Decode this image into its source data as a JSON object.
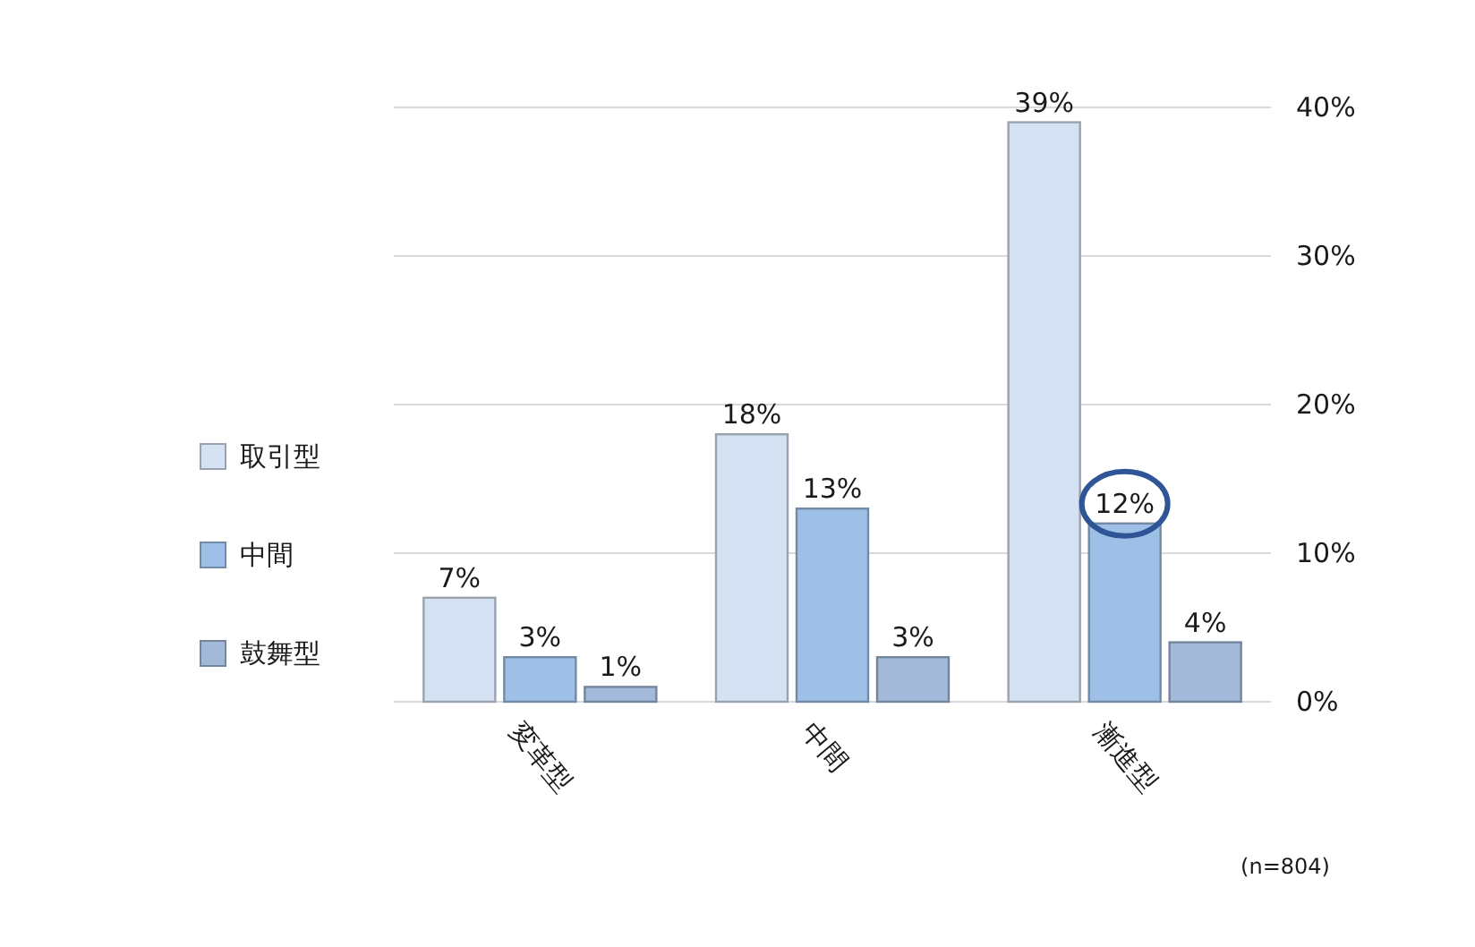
{
  "chart_data": {
    "type": "bar",
    "categories": [
      "変革型",
      "中間",
      "漸進型"
    ],
    "series": [
      {
        "name": "取引型",
        "color": "#d5e2f3",
        "values": [
          7,
          18,
          39
        ],
        "value_labels": [
          "7%",
          "18%",
          "39%"
        ]
      },
      {
        "name": "中間",
        "color": "#9ec0e6",
        "values": [
          3,
          13,
          12
        ],
        "value_labels": [
          "3%",
          "13%",
          "12%"
        ]
      },
      {
        "name": "鼓舞型",
        "color": "#a3b9d9",
        "values": [
          1,
          3,
          4
        ],
        "value_labels": [
          "1%",
          "3%",
          "4%"
        ]
      }
    ],
    "ylim": [
      0,
      40
    ],
    "yticks": [
      {
        "value": 0,
        "label": "0%"
      },
      {
        "value": 10,
        "label": "10%"
      },
      {
        "value": 20,
        "label": "20%"
      },
      {
        "value": 30,
        "label": "30%"
      },
      {
        "value": 40,
        "label": "40%"
      }
    ],
    "grid": "y",
    "legend": "left",
    "annotations": [
      "(n=804)"
    ]
  }
}
